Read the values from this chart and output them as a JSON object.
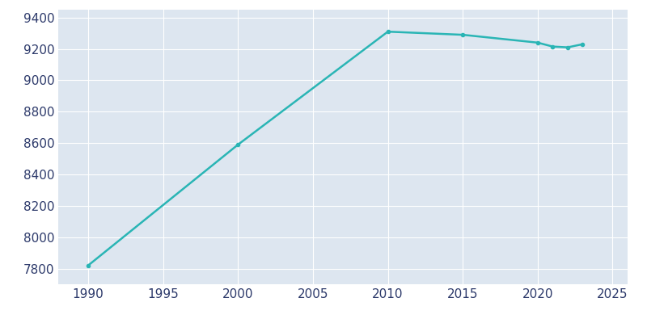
{
  "years": [
    1990,
    2000,
    2010,
    2015,
    2020,
    2021,
    2022,
    2023
  ],
  "population": [
    7820,
    8590,
    9310,
    9290,
    9240,
    9215,
    9210,
    9230
  ],
  "line_color": "#2ab5b5",
  "marker": "o",
  "marker_size": 3,
  "line_width": 1.8,
  "bg_color": "#e8eef5",
  "plot_bg_color": "#dde6f0",
  "grid_color": "#ffffff",
  "tick_label_color": "#2d3a6b",
  "xlim": [
    1988,
    2026
  ],
  "ylim": [
    7700,
    9450
  ],
  "xticks": [
    1990,
    1995,
    2000,
    2005,
    2010,
    2015,
    2020,
    2025
  ],
  "yticks": [
    7800,
    8000,
    8200,
    8400,
    8600,
    8800,
    9000,
    9200,
    9400
  ],
  "tick_fontsize": 11,
  "spine_visible": false
}
